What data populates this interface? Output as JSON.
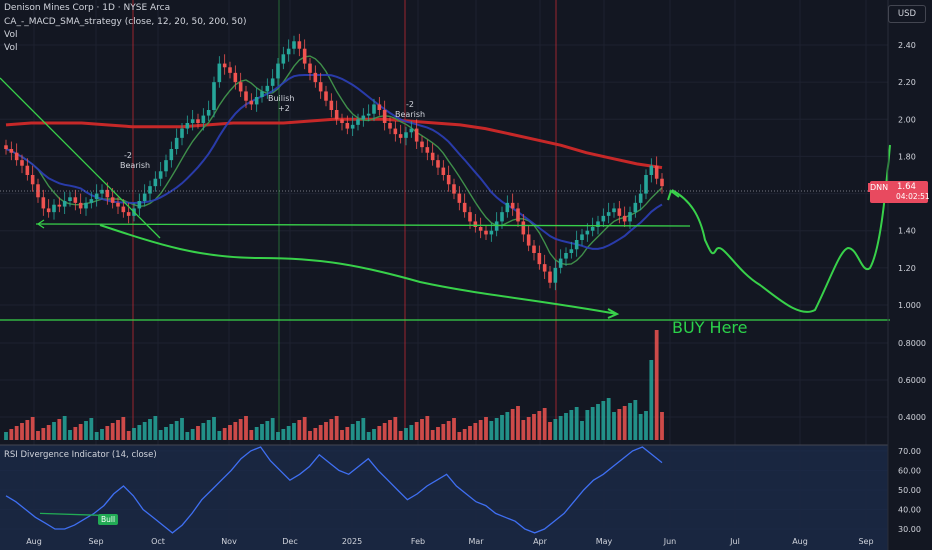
{
  "header": {
    "symbol_line": "Denison Mines Corp · 1D · NYSE Arca",
    "indicator_line": "CA_-_MACD_SMA_strategy (close, 12, 20, 50, 200, 50)",
    "vol1": "Vol",
    "vol2": "Vol",
    "currency": "USD"
  },
  "price_tag": {
    "symbol": "DNN",
    "price": "1.64",
    "countdown": "04:02:51"
  },
  "annotations": {
    "buy_here": "BUY Here",
    "bearish1_num": "-2",
    "bearish1_txt": "Bearish",
    "bullish_txt": "Builish",
    "bullish_num": "+2",
    "bearish2_num": "-2",
    "bearish2_txt": "Bearish",
    "rsi_title": "RSI Divergence Indicator (14, close)",
    "bull_label": "Bull"
  },
  "chart_data": {
    "type": "candlestick",
    "price_axis": {
      "ticks": [
        "2.40",
        "2.20",
        "2.00",
        "1.80",
        "1.60",
        "1.40",
        "1.20",
        "1.000",
        "0.8000",
        "0.6000",
        "0.4000"
      ],
      "min": 0.3,
      "max": 2.5
    },
    "x_ticks": [
      "Aug",
      "Sep",
      "Oct",
      "Nov",
      "Dec",
      "2025",
      "Feb",
      "Mar",
      "Apr",
      "May",
      "Jun",
      "Jul",
      "Aug",
      "Sep"
    ],
    "rsi_axis": {
      "ticks": [
        "70.00",
        "60.00",
        "50.00",
        "40.00",
        "30.00"
      ]
    },
    "close": [
      1.84,
      1.82,
      1.78,
      1.75,
      1.7,
      1.65,
      1.58,
      1.52,
      1.5,
      1.54,
      1.53,
      1.56,
      1.58,
      1.55,
      1.52,
      1.55,
      1.57,
      1.6,
      1.62,
      1.58,
      1.55,
      1.53,
      1.5,
      1.48,
      1.52,
      1.56,
      1.6,
      1.64,
      1.68,
      1.72,
      1.78,
      1.84,
      1.9,
      1.95,
      1.98,
      2.0,
      1.98,
      2.02,
      2.05,
      2.2,
      2.3,
      2.28,
      2.25,
      2.2,
      2.15,
      2.1,
      2.08,
      2.12,
      2.15,
      2.18,
      2.22,
      2.3,
      2.35,
      2.38,
      2.42,
      2.38,
      2.3,
      2.25,
      2.2,
      2.15,
      2.1,
      2.05,
      2.0,
      1.98,
      1.95,
      1.97,
      2.0,
      2.02,
      2.03,
      2.08,
      2.05,
      1.98,
      1.95,
      1.92,
      1.9,
      1.93,
      1.95,
      1.88,
      1.85,
      1.82,
      1.78,
      1.74,
      1.7,
      1.65,
      1.6,
      1.55,
      1.5,
      1.45,
      1.42,
      1.4,
      1.38,
      1.4,
      1.45,
      1.5,
      1.55,
      1.52,
      1.45,
      1.38,
      1.32,
      1.28,
      1.22,
      1.18,
      1.12,
      1.2,
      1.25,
      1.28,
      1.3,
      1.35,
      1.38,
      1.4,
      1.42,
      1.45,
      1.48,
      1.5,
      1.52,
      1.48,
      1.45,
      1.5,
      1.55,
      1.6,
      1.7,
      1.75,
      1.68,
      1.64
    ],
    "ma200": [
      1.97,
      1.98,
      1.98,
      1.98,
      1.97,
      1.96,
      1.96,
      1.96,
      1.97,
      1.98,
      1.98,
      1.98,
      1.99,
      2.0,
      2.0,
      2.0,
      1.99,
      1.98,
      1.97,
      1.95,
      1.92,
      1.89,
      1.86,
      1.82,
      1.79,
      1.76,
      1.74
    ],
    "volume_max": 0.85,
    "rsi": [
      47,
      44,
      40,
      36,
      33,
      30,
      30,
      32,
      35,
      38,
      42,
      48,
      52,
      47,
      40,
      36,
      32,
      28,
      32,
      38,
      45,
      50,
      55,
      60,
      66,
      70,
      72,
      65,
      60,
      55,
      58,
      62,
      68,
      64,
      60,
      58,
      62,
      66,
      60,
      55,
      50,
      45,
      48,
      52,
      55,
      58,
      52,
      48,
      44,
      42,
      38,
      36,
      34,
      30,
      28,
      30,
      34,
      38,
      44,
      50,
      55,
      58,
      62,
      66,
      70,
      72,
      68,
      64
    ]
  }
}
